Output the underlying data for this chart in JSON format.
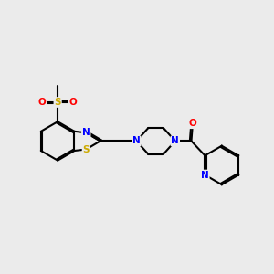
{
  "background_color": "#ebebeb",
  "bond_color": "#000000",
  "atom_colors": {
    "N": "#0000ff",
    "S": "#ccaa00",
    "O": "#ff0000",
    "C": "#000000"
  },
  "figsize": [
    3.0,
    3.0
  ],
  "dpi": 100
}
